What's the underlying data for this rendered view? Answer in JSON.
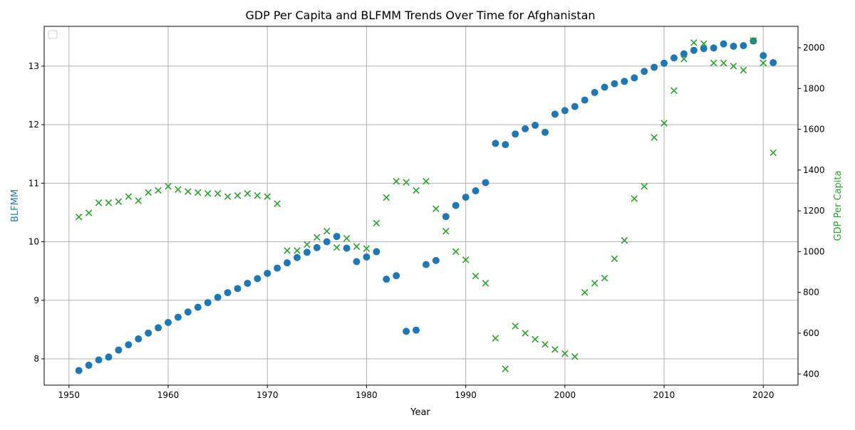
{
  "chart_data": {
    "type": "scatter",
    "title": "GDP Per Capita and BLFMM Trends Over Time for Afghanistan",
    "xlabel": "Year",
    "ylabel_left": "BLFMM",
    "ylabel_right": "GDP Per Capita",
    "xlim": [
      1947.5,
      2023.5
    ],
    "ylim_left": [
      7.55,
      13.68
    ],
    "ylim_right": [
      345,
      2105
    ],
    "x_ticks": [
      1950,
      1960,
      1970,
      1980,
      1990,
      2000,
      2010,
      2020
    ],
    "y_ticks_left": [
      8,
      9,
      10,
      11,
      12,
      13
    ],
    "y_ticks_right": [
      400,
      600,
      800,
      1000,
      1200,
      1400,
      1600,
      1800,
      2000
    ],
    "grid": true,
    "legend": "top-left (empty)",
    "colors": {
      "left_series": "#1f77b4",
      "right_series": "#2ca02c",
      "axis": "#000000",
      "grid": "#b0b0b0"
    },
    "series": [
      {
        "axis": "left",
        "marker": "circle",
        "x": [
          1951,
          1952,
          1953,
          1954,
          1955,
          1956,
          1957,
          1958,
          1959,
          1960,
          1961,
          1962,
          1963,
          1964,
          1965,
          1966,
          1967,
          1968,
          1969,
          1970,
          1971,
          1972,
          1973,
          1974,
          1975,
          1976,
          1977,
          1978,
          1979,
          1980,
          1981,
          1982,
          1983,
          1984,
          1985,
          1986,
          1987,
          1988,
          1989,
          1990,
          1991,
          1992,
          1993,
          1994,
          1995,
          1996,
          1997,
          1998,
          1999,
          2000,
          2001,
          2002,
          2003,
          2004,
          2005,
          2006,
          2007,
          2008,
          2009,
          2010,
          2011,
          2012,
          2013,
          2014,
          2015,
          2016,
          2017,
          2018,
          2019,
          2020,
          2021
        ],
        "y": [
          7.8,
          7.89,
          7.98,
          8.03,
          8.15,
          8.24,
          8.34,
          8.44,
          8.53,
          8.62,
          8.71,
          8.8,
          8.88,
          8.96,
          9.05,
          9.13,
          9.2,
          9.29,
          9.37,
          9.46,
          9.55,
          9.64,
          9.73,
          9.82,
          9.9,
          10.0,
          10.09,
          9.89,
          9.66,
          9.74,
          9.83,
          9.36,
          9.42,
          8.47,
          8.49,
          9.61,
          9.68,
          10.43,
          10.62,
          10.76,
          10.87,
          11.01,
          11.68,
          11.66,
          11.84,
          11.93,
          11.99,
          11.87,
          12.18,
          12.24,
          12.31,
          12.42,
          12.55,
          12.64,
          12.7,
          12.74,
          12.8,
          12.91,
          12.98,
          13.05,
          13.14,
          13.21,
          13.27,
          13.3,
          13.31,
          13.38,
          13.34,
          13.35,
          13.43,
          13.18,
          13.06
        ]
      },
      {
        "axis": "right",
        "marker": "x",
        "x": [
          1951,
          1952,
          1953,
          1954,
          1955,
          1956,
          1957,
          1958,
          1959,
          1960,
          1961,
          1962,
          1963,
          1964,
          1965,
          1966,
          1967,
          1968,
          1969,
          1970,
          1971,
          1972,
          1973,
          1974,
          1975,
          1976,
          1977,
          1978,
          1979,
          1980,
          1981,
          1982,
          1983,
          1984,
          1985,
          1986,
          1987,
          1988,
          1989,
          1990,
          1991,
          1992,
          1993,
          1994,
          1995,
          1996,
          1997,
          1998,
          1999,
          2000,
          2001,
          2002,
          2003,
          2004,
          2005,
          2006,
          2007,
          2008,
          2009,
          2010,
          2011,
          2012,
          2013,
          2014,
          2015,
          2016,
          2017,
          2018,
          2019,
          2020,
          2021
        ],
        "y": [
          1170,
          1190,
          1240,
          1240,
          1245,
          1270,
          1250,
          1290,
          1300,
          1320,
          1305,
          1295,
          1290,
          1285,
          1285,
          1270,
          1275,
          1285,
          1275,
          1270,
          1235,
          1005,
          1005,
          1035,
          1070,
          1100,
          1020,
          1065,
          1025,
          1015,
          1140,
          1265,
          1345,
          1340,
          1300,
          1345,
          1210,
          1100,
          1000,
          960,
          880,
          845,
          575,
          425,
          635,
          600,
          570,
          545,
          520,
          500,
          485,
          800,
          845,
          870,
          965,
          1055,
          1260,
          1320,
          1560,
          1630,
          1790,
          1945,
          2025,
          2020,
          1925,
          1925,
          1910,
          1890,
          2035,
          1925,
          1485
        ]
      }
    ]
  }
}
